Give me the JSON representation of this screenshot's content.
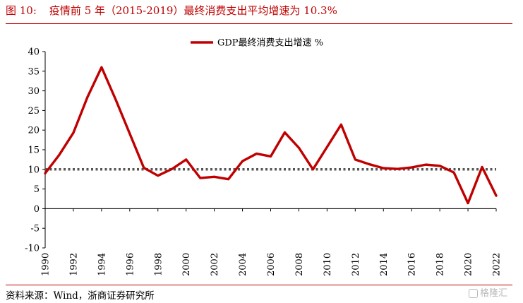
{
  "figure": {
    "number": "图 10:",
    "title": "疫情前 5 年（2015-2019）最终消费支出平均增速为 10.3%",
    "source": "资料来源：Wind，浙商证券研究所",
    "watermark": "格隆汇"
  },
  "chart_data": {
    "type": "line",
    "title": "",
    "xlabel": "",
    "ylabel": "",
    "ylim": [
      -10,
      40
    ],
    "yticks": [
      -10,
      -5,
      0,
      5,
      10,
      15,
      20,
      25,
      30,
      35,
      40
    ],
    "xlim": [
      1990,
      2022
    ],
    "xticks": [
      "1990",
      "1992",
      "1994",
      "1996",
      "1998",
      "2000",
      "2002",
      "2004",
      "2006",
      "2008",
      "2010",
      "2012",
      "2014",
      "2016",
      "2018",
      "2020",
      "2022"
    ],
    "legend_position": "top-center",
    "grid": false,
    "series": [
      {
        "name": "GDP最终消费支出增速 %",
        "color": "#c00000",
        "x": [
          1990,
          1991,
          1992,
          1993,
          1994,
          1995,
          1996,
          1997,
          1998,
          1999,
          2000,
          2001,
          2002,
          2003,
          2004,
          2005,
          2006,
          2007,
          2008,
          2009,
          2010,
          2011,
          2012,
          2013,
          2014,
          2015,
          2016,
          2017,
          2018,
          2019,
          2020,
          2021,
          2022
        ],
        "values": [
          9.0,
          13.7,
          19.3,
          28.4,
          36.0,
          27.8,
          19.1,
          10.4,
          8.4,
          10.1,
          12.5,
          7.8,
          8.1,
          7.5,
          12.1,
          14.0,
          13.3,
          19.4,
          15.5,
          10.0,
          15.7,
          21.4,
          12.5,
          11.3,
          10.3,
          10.1,
          10.5,
          11.2,
          10.9,
          9.2,
          1.4,
          10.6,
          3.3
        ]
      }
    ],
    "reference_lines": [
      {
        "y": 10,
        "style": "dotted",
        "color": "#555555"
      }
    ]
  }
}
